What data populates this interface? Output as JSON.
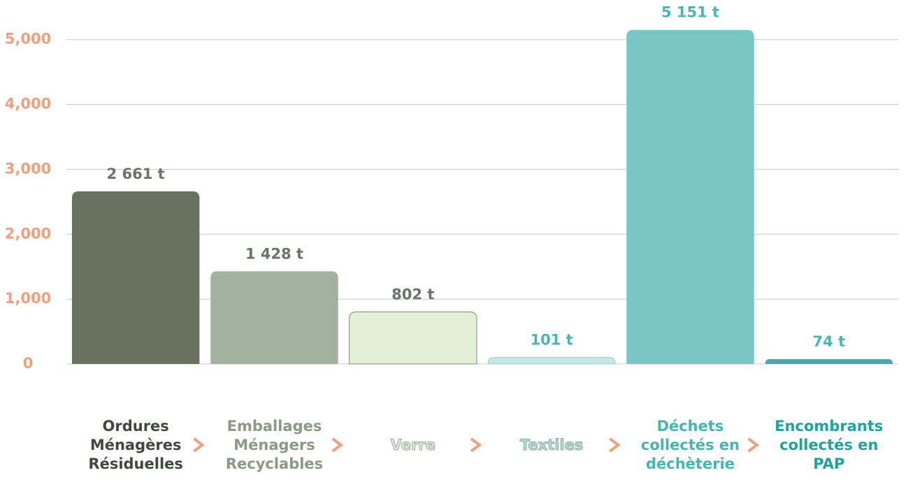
{
  "chart_data": {
    "type": "bar",
    "categories": [
      "Ordures Ménagères Résiduelles",
      "Emballages Ménagers Recyclables",
      "Verre",
      "Textiles",
      "Déchets collectés en déchèterie",
      "Encombrants collectés en PAP"
    ],
    "values": [
      2661,
      1428,
      802,
      101,
      5151,
      74
    ],
    "value_labels": [
      "2 661 t",
      "1 428 t",
      "802 t",
      "101 t",
      "5 151 t",
      "74 t"
    ],
    "colors": [
      "#68725f",
      "#a1b29f",
      "#e2eed6",
      "#c4e6e5",
      "#79c6c6",
      "#45aaa5"
    ],
    "value_label_colors": [
      "#6b7466",
      "#6b7466",
      "#6b7466",
      "#4bb5b0",
      "#4bb5b0",
      "#4bb5b0"
    ],
    "category_colors": [
      "#3e4a3c",
      "#8a9a86",
      "#dfe9d6",
      "#a9dcdc",
      "#45b5b0",
      "#1fa39b"
    ],
    "ylim": [
      0,
      5600
    ],
    "yticks": [
      0,
      {
        "value": 1000,
        "label": "1,000"
      },
      {
        "value": 2000,
        "label": "2,000"
      },
      {
        "value": 3000,
        "label": "3,000"
      },
      {
        "value": 4000,
        "label": "4,000"
      },
      {
        "value": 5000,
        "label": "5,000"
      }
    ],
    "grid": true
  }
}
